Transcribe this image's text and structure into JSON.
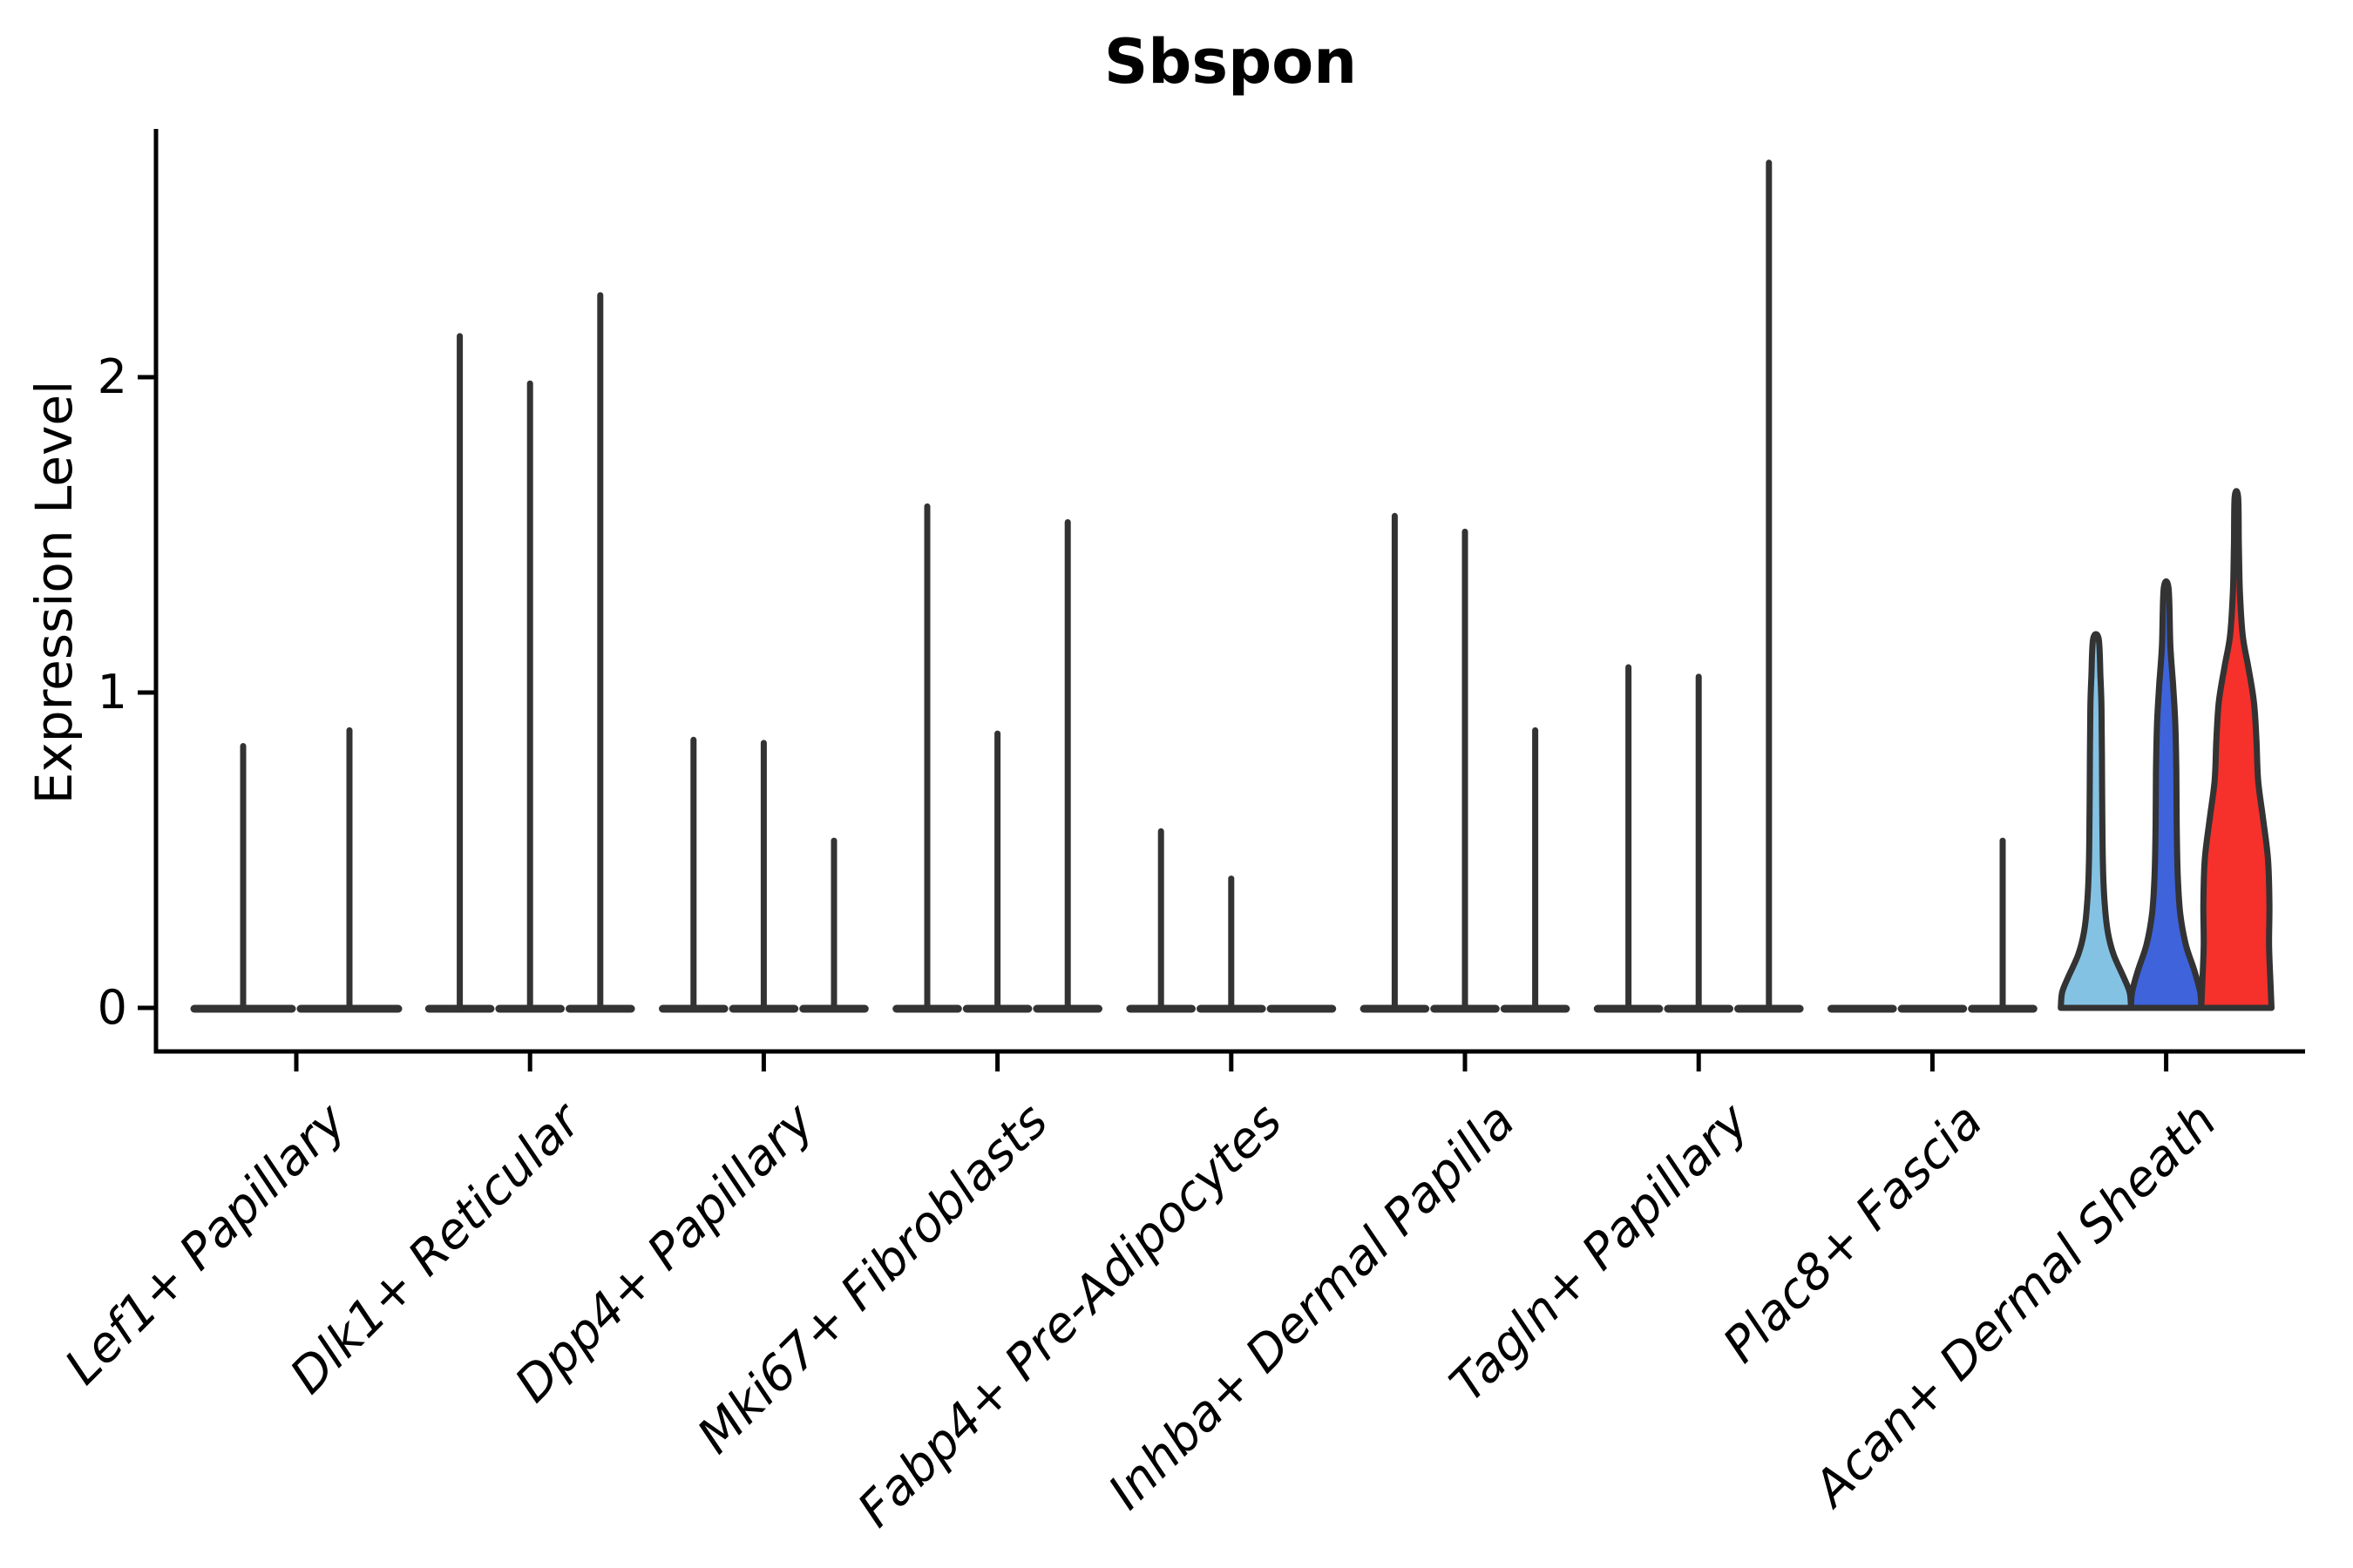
{
  "title": "Sbspon",
  "y_axis": {
    "label": "Expression Level",
    "tick_labels": [
      "0",
      "1",
      "2"
    ],
    "tick_values": [
      0,
      1,
      2
    ]
  },
  "x_axis": {
    "categories": [
      "Lef1+ Papillary",
      "Dlk1+ Reticular",
      "Dpp4+ Papillary",
      "Mki67+ Fibroblasts",
      "Fabp4+ Pre-Adipocytes",
      "Inhba+ Dermal Papilla",
      "Tagln+ Papillary",
      "Plac8+ Fascia",
      "Acan+ Dermal Sheath"
    ]
  },
  "colors": {
    "outline": "#333333",
    "axis": "#000000",
    "lightblue": "#84C2E4",
    "royalblue": "#3E63DB",
    "red": "#F6302B"
  },
  "chart_data": {
    "type": "violin",
    "title": "Sbspon",
    "xlabel": "",
    "ylabel": "Expression Level",
    "ylim": [
      0,
      2.75
    ],
    "yticks": [
      0,
      1,
      2
    ],
    "grid": false,
    "legend": "none",
    "categories": [
      "Lef1+ Papillary",
      "Dlk1+ Reticular",
      "Dpp4+ Papillary",
      "Mki67+ Fibroblasts",
      "Fabp4+ Pre-Adipocytes",
      "Inhba+ Dermal Papilla",
      "Tagln+ Papillary",
      "Plac8+ Fascia",
      "Acan+ Dermal Sheath"
    ],
    "groups": [
      {
        "category": "Lef1+ Papillary",
        "violins": [
          {
            "max": 0.83
          },
          {
            "max": 0.88
          }
        ]
      },
      {
        "category": "Dlk1+ Reticular",
        "violins": [
          {
            "max": 2.13
          },
          {
            "max": 1.98
          },
          {
            "max": 2.26
          }
        ]
      },
      {
        "category": "Dpp4+ Papillary",
        "violins": [
          {
            "max": 0.85
          },
          {
            "max": 0.84
          },
          {
            "max": 0.53
          }
        ]
      },
      {
        "category": "Mki67+ Fibroblasts",
        "violins": [
          {
            "max": 1.59
          },
          {
            "max": 0.87
          },
          {
            "max": 1.54
          }
        ]
      },
      {
        "category": "Fabp4+ Pre-Adipocytes",
        "violins": [
          {
            "max": 0.56
          },
          {
            "max": 0.41
          },
          {
            "max": 0
          }
        ]
      },
      {
        "category": "Inhba+ Dermal Papilla",
        "violins": [
          {
            "max": 1.56
          },
          {
            "max": 1.51
          },
          {
            "max": 0.88
          }
        ]
      },
      {
        "category": "Tagln+ Papillary",
        "violins": [
          {
            "max": 1.08
          },
          {
            "max": 1.05
          },
          {
            "max": 2.68
          }
        ]
      },
      {
        "category": "Plac8+ Fascia",
        "violins": [
          {
            "max": 0
          },
          {
            "max": 0
          },
          {
            "max": 0.53
          }
        ]
      },
      {
        "category": "Acan+ Dermal Sheath",
        "violins": [
          {
            "max": 1.17,
            "fill": "#84C2E4",
            "profile": "lightblue"
          },
          {
            "max": 1.33,
            "fill": "#3E63DB",
            "profile": "royalblue"
          },
          {
            "max": 1.62,
            "fill": "#F6302B",
            "profile": "red"
          }
        ]
      }
    ],
    "profiles": {
      "lightblue": [
        [
          0,
          1.0
        ],
        [
          0.05,
          0.96
        ],
        [
          0.1,
          0.78
        ],
        [
          0.17,
          0.5
        ],
        [
          0.24,
          0.34
        ],
        [
          0.33,
          0.25
        ],
        [
          0.45,
          0.2
        ],
        [
          0.62,
          0.18
        ],
        [
          0.8,
          0.17
        ],
        [
          0.95,
          0.16
        ],
        [
          1.05,
          0.13
        ],
        [
          1.17,
          0.08
        ]
      ],
      "royalblue": [
        [
          0,
          1.0
        ],
        [
          0.05,
          0.97
        ],
        [
          0.12,
          0.8
        ],
        [
          0.2,
          0.56
        ],
        [
          0.3,
          0.4
        ],
        [
          0.42,
          0.33
        ],
        [
          0.58,
          0.3
        ],
        [
          0.75,
          0.29
        ],
        [
          0.9,
          0.26
        ],
        [
          1.02,
          0.2
        ],
        [
          1.15,
          0.12
        ],
        [
          1.33,
          0.07
        ]
      ],
      "red": [
        [
          0,
          1.0
        ],
        [
          0.08,
          0.97
        ],
        [
          0.2,
          0.93
        ],
        [
          0.33,
          0.94
        ],
        [
          0.47,
          0.9
        ],
        [
          0.6,
          0.76
        ],
        [
          0.72,
          0.62
        ],
        [
          0.85,
          0.57
        ],
        [
          0.97,
          0.5
        ],
        [
          1.08,
          0.34
        ],
        [
          1.18,
          0.18
        ],
        [
          1.32,
          0.1
        ],
        [
          1.47,
          0.07
        ],
        [
          1.62,
          0.05
        ]
      ]
    }
  }
}
